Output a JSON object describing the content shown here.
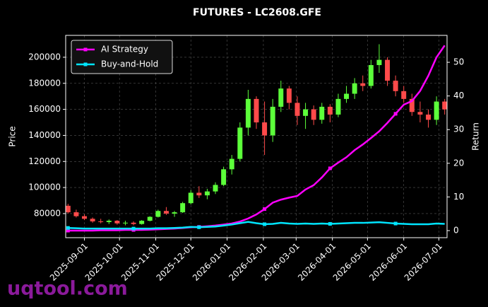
{
  "chart_data": {
    "type": "candlestick",
    "title": "FUTURES - LC2608.GFE",
    "ylabel": "Price",
    "y2label": "Return",
    "watermark": "uqtool.com",
    "x": [
      "2025-08-18",
      "2025-08-25",
      "2025-09-01",
      "2025-09-08",
      "2025-09-15",
      "2025-09-22",
      "2025-09-29",
      "2025-10-06",
      "2025-10-13",
      "2025-10-20",
      "2025-10-27",
      "2025-11-03",
      "2025-11-10",
      "2025-11-17",
      "2025-11-24",
      "2025-12-01",
      "2025-12-08",
      "2025-12-15",
      "2025-12-22",
      "2025-12-29",
      "2026-01-05",
      "2026-01-12",
      "2026-01-19",
      "2026-01-26",
      "2026-02-02",
      "2026-02-09",
      "2026-02-16",
      "2026-02-23",
      "2026-03-02",
      "2026-03-09",
      "2026-03-16",
      "2026-03-23",
      "2026-03-30",
      "2026-04-06",
      "2026-04-13",
      "2026-04-20",
      "2026-04-27",
      "2026-05-04",
      "2026-05-11",
      "2026-05-18",
      "2026-05-25",
      "2026-06-01",
      "2026-06-08",
      "2026-06-15",
      "2026-06-22",
      "2026-06-29",
      "2026-07-06"
    ],
    "open": [
      86000,
      81000,
      78000,
      76000,
      74000,
      73500,
      74500,
      72500,
      73000,
      72000,
      74500,
      77500,
      82000,
      80000,
      81000,
      88000,
      96000,
      94000,
      97000,
      102000,
      114000,
      122000,
      146000,
      168000,
      150000,
      140000,
      162000,
      176000,
      165000,
      155000,
      160000,
      152000,
      162000,
      156000,
      168000,
      172000,
      180000,
      178000,
      194000,
      198000,
      182000,
      174000,
      168000,
      158000,
      156000,
      152000,
      166000
    ],
    "high": [
      87500,
      83000,
      79500,
      77000,
      76000,
      75500,
      75000,
      74500,
      74000,
      75000,
      78000,
      83000,
      85000,
      82000,
      89000,
      98000,
      101000,
      99000,
      104000,
      116000,
      125000,
      150000,
      175000,
      170000,
      166000,
      168000,
      182000,
      178000,
      170000,
      165000,
      163000,
      165000,
      164000,
      172000,
      178000,
      184000,
      186000,
      198000,
      210000,
      200000,
      186000,
      178000,
      172000,
      166000,
      160000,
      170000,
      168000
    ],
    "low": [
      80000,
      77000,
      75000,
      73000,
      72500,
      72000,
      71500,
      71000,
      71000,
      71500,
      74000,
      77000,
      79000,
      77500,
      80500,
      87000,
      92000,
      91000,
      95000,
      101000,
      110000,
      120000,
      140000,
      145000,
      125000,
      135000,
      158000,
      160000,
      148000,
      145000,
      148000,
      149000,
      150000,
      154000,
      165000,
      168000,
      174000,
      176000,
      188000,
      178000,
      170000,
      165000,
      155000,
      150000,
      146000,
      148000,
      156000
    ],
    "close": [
      81000,
      78000,
      76000,
      74000,
      73500,
      74500,
      72500,
      73000,
      72000,
      74500,
      77500,
      82000,
      80000,
      81000,
      88000,
      96000,
      94000,
      97000,
      102000,
      114000,
      122000,
      146000,
      168000,
      150000,
      140000,
      162000,
      176000,
      165000,
      155000,
      160000,
      152000,
      162000,
      156000,
      168000,
      172000,
      180000,
      178000,
      194000,
      198000,
      182000,
      174000,
      168000,
      158000,
      156000,
      152000,
      166000,
      160000
    ],
    "up_color": "#5cff3a",
    "down_color": "#ff4a4a",
    "series": [
      {
        "name": "AI Strategy",
        "color": "#ff00ff",
        "axis": "y2",
        "values": [
          0,
          0,
          0,
          0,
          0.1,
          0.1,
          0.1,
          0.2,
          0.2,
          0.2,
          0.3,
          0.4,
          0.5,
          0.6,
          0.8,
          1.0,
          1.1,
          1.3,
          1.5,
          1.8,
          2.1,
          2.7,
          3.6,
          4.8,
          6.4,
          8.3,
          9.2,
          9.8,
          10.3,
          12.2,
          13.5,
          15.8,
          18.5,
          20.2,
          21.8,
          23.9,
          25.6,
          27.5,
          29.5,
          32.0,
          34.7,
          37.4,
          38.5,
          41.5,
          46.0,
          51.5,
          55.0
        ]
      },
      {
        "name": "Buy-and-Hold",
        "color": "#00e5ff",
        "axis": "y2",
        "values": [
          0.8,
          0.7,
          0.6,
          0.6,
          0.6,
          0.6,
          0.6,
          0.6,
          0.6,
          0.6,
          0.6,
          0.7,
          0.7,
          0.8,
          0.9,
          1.1,
          1.0,
          1.1,
          1.2,
          1.5,
          1.8,
          2.2,
          2.6,
          2.2,
          1.9,
          2.0,
          2.3,
          2.1,
          2.0,
          2.1,
          2.0,
          2.1,
          2.0,
          2.1,
          2.2,
          2.3,
          2.3,
          2.4,
          2.5,
          2.3,
          2.1,
          2.0,
          1.9,
          1.9,
          1.9,
          2.1,
          2.0
        ]
      }
    ],
    "xlim": [
      "2025-08-16",
      "2026-07-08"
    ],
    "xticks": [
      "2025-09-01",
      "2025-10-01",
      "2025-11-01",
      "2025-12-01",
      "2026-01-01",
      "2026-02-01",
      "2026-03-01",
      "2026-04-01",
      "2026-05-01",
      "2026-06-01",
      "2026-07-01"
    ],
    "ylim": [
      61500,
      216800
    ],
    "yticks": [
      80000,
      100000,
      120000,
      140000,
      160000,
      180000,
      200000
    ],
    "y2lim": [
      -2.1,
      58.0
    ],
    "y2ticks": [
      0,
      10,
      20,
      30,
      40,
      50
    ],
    "grid": true,
    "legend": "upper left"
  }
}
